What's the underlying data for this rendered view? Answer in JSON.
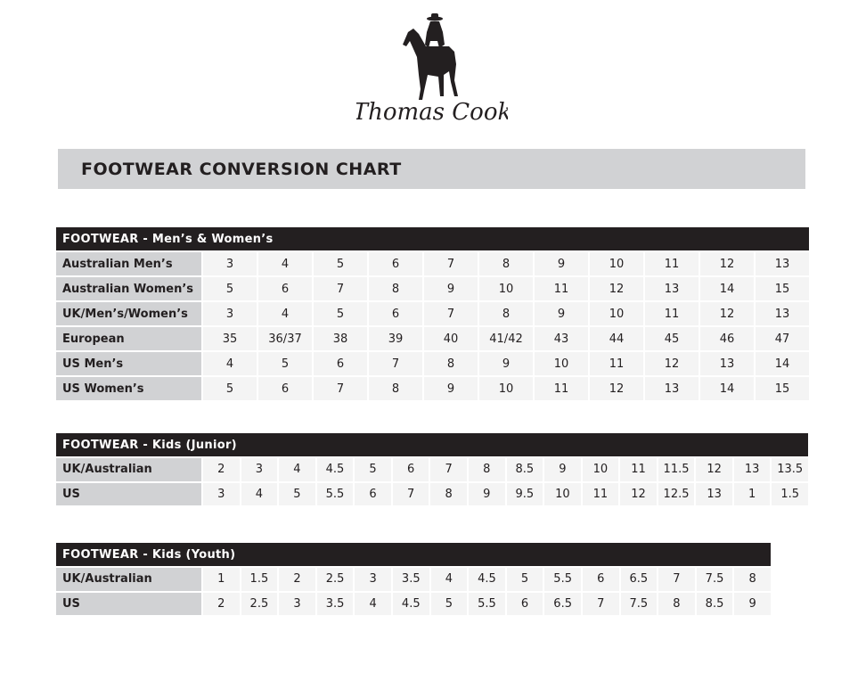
{
  "brand": {
    "logo_text": "Thomas Cook"
  },
  "title": "FOOTWEAR CONVERSION CHART",
  "tables": [
    {
      "header": "FOOTWEAR - Men’s & Women’s",
      "rows": [
        {
          "label": "Australian Men’s",
          "values": [
            "3",
            "4",
            "5",
            "6",
            "7",
            "8",
            "9",
            "10",
            "11",
            "12",
            "13"
          ]
        },
        {
          "label": "Australian Women’s",
          "values": [
            "5",
            "6",
            "7",
            "8",
            "9",
            "10",
            "11",
            "12",
            "13",
            "14",
            "15"
          ]
        },
        {
          "label": "UK/Men’s/Women’s",
          "values": [
            "3",
            "4",
            "5",
            "6",
            "7",
            "8",
            "9",
            "10",
            "11",
            "12",
            "13"
          ]
        },
        {
          "label": "European",
          "values": [
            "35",
            "36/37",
            "38",
            "39",
            "40",
            "41/42",
            "43",
            "44",
            "45",
            "46",
            "47"
          ]
        },
        {
          "label": "US Men’s",
          "values": [
            "4",
            "5",
            "6",
            "7",
            "8",
            "9",
            "10",
            "11",
            "12",
            "13",
            "14"
          ]
        },
        {
          "label": "US Women’s",
          "values": [
            "5",
            "6",
            "7",
            "8",
            "9",
            "10",
            "11",
            "12",
            "13",
            "14",
            "15"
          ]
        }
      ]
    },
    {
      "header": "FOOTWEAR - Kids (Junior)",
      "rows": [
        {
          "label": "UK/Australian",
          "values": [
            "2",
            "3",
            "4",
            "4.5",
            "5",
            "6",
            "7",
            "8",
            "8.5",
            "9",
            "10",
            "11",
            "11.5",
            "12",
            "13",
            "13.5"
          ]
        },
        {
          "label": "US",
          "values": [
            "3",
            "4",
            "5",
            "5.5",
            "6",
            "7",
            "8",
            "9",
            "9.5",
            "10",
            "11",
            "12",
            "12.5",
            "13",
            "1",
            "1.5"
          ]
        }
      ]
    },
    {
      "header": "FOOTWEAR - Kids (Youth)",
      "rows": [
        {
          "label": "UK/Australian",
          "values": [
            "1",
            "1.5",
            "2",
            "2.5",
            "3",
            "3.5",
            "4",
            "4.5",
            "5",
            "5.5",
            "6",
            "6.5",
            "7",
            "7.5",
            "8"
          ]
        },
        {
          "label": "US",
          "values": [
            "2",
            "2.5",
            "3",
            "3.5",
            "4",
            "4.5",
            "5",
            "5.5",
            "6",
            "6.5",
            "7",
            "7.5",
            "8",
            "8.5",
            "9"
          ]
        }
      ]
    }
  ]
}
